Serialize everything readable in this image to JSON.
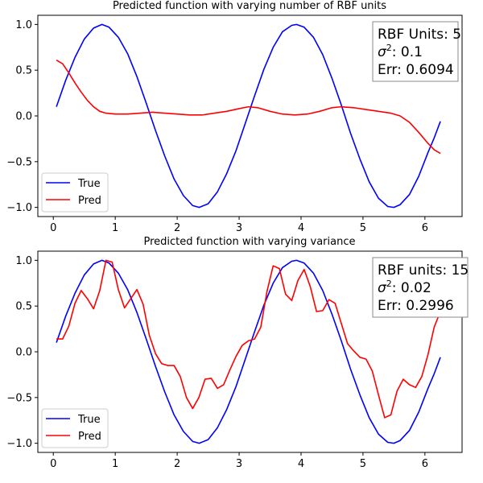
{
  "chart_data": [
    {
      "type": "line",
      "title": "Predicted function with varying number of RBF units",
      "xlabel": "",
      "ylabel": "",
      "xlim": [
        -0.25,
        6.6
      ],
      "ylim": [
        -1.1,
        1.1
      ],
      "x_ticks": [
        0,
        1,
        2,
        3,
        4,
        5,
        6
      ],
      "y_ticks": [
        -1.0,
        -0.5,
        0.0,
        0.5,
        1.0
      ],
      "grid": false,
      "legend": "lower-left",
      "info_box": {
        "lines": [
          "RBF Units: 5",
          "σ²: 0.1",
          "Err: 0.6094"
        ],
        "sigma_prefix": "σ",
        "sigma_exp": "2",
        "sigma_value": ": 0.1"
      },
      "series": [
        {
          "name": "True",
          "color": "#0000ff",
          "points": [
            [
              0.05,
              0.1
            ],
            [
              0.2,
              0.39
            ],
            [
              0.35,
              0.64
            ],
            [
              0.5,
              0.84
            ],
            [
              0.65,
              0.96
            ],
            [
              0.785,
              1.0
            ],
            [
              0.9,
              0.97
            ],
            [
              1.05,
              0.86
            ],
            [
              1.2,
              0.68
            ],
            [
              1.35,
              0.43
            ],
            [
              1.5,
              0.14
            ],
            [
              1.65,
              -0.16
            ],
            [
              1.8,
              -0.44
            ],
            [
              1.95,
              -0.69
            ],
            [
              2.1,
              -0.87
            ],
            [
              2.25,
              -0.98
            ],
            [
              2.356,
              -1.0
            ],
            [
              2.5,
              -0.96
            ],
            [
              2.65,
              -0.83
            ],
            [
              2.8,
              -0.63
            ],
            [
              2.95,
              -0.38
            ],
            [
              3.1,
              -0.08
            ],
            [
              3.25,
              0.22
            ],
            [
              3.4,
              0.51
            ],
            [
              3.55,
              0.75
            ],
            [
              3.7,
              0.92
            ],
            [
              3.85,
              0.99
            ],
            [
              3.927,
              1.0
            ],
            [
              4.05,
              0.97
            ],
            [
              4.2,
              0.86
            ],
            [
              4.35,
              0.67
            ],
            [
              4.5,
              0.41
            ],
            [
              4.65,
              0.12
            ],
            [
              4.8,
              -0.19
            ],
            [
              4.95,
              -0.47
            ],
            [
              5.1,
              -0.72
            ],
            [
              5.25,
              -0.9
            ],
            [
              5.4,
              -0.99
            ],
            [
              5.498,
              -1.0
            ],
            [
              5.6,
              -0.97
            ],
            [
              5.75,
              -0.86
            ],
            [
              5.9,
              -0.66
            ],
            [
              6.05,
              -0.4
            ],
            [
              6.15,
              -0.24
            ],
            [
              6.25,
              -0.06
            ]
          ]
        },
        {
          "name": "Pred",
          "color": "#ff0000",
          "points": [
            [
              0.05,
              0.61
            ],
            [
              0.15,
              0.57
            ],
            [
              0.25,
              0.47
            ],
            [
              0.35,
              0.36
            ],
            [
              0.45,
              0.26
            ],
            [
              0.55,
              0.17
            ],
            [
              0.65,
              0.1
            ],
            [
              0.75,
              0.05
            ],
            [
              0.85,
              0.03
            ],
            [
              1.0,
              0.02
            ],
            [
              1.2,
              0.02
            ],
            [
              1.4,
              0.03
            ],
            [
              1.6,
              0.04
            ],
            [
              1.8,
              0.03
            ],
            [
              2.0,
              0.02
            ],
            [
              2.2,
              0.01
            ],
            [
              2.4,
              0.01
            ],
            [
              2.6,
              0.03
            ],
            [
              2.8,
              0.05
            ],
            [
              3.0,
              0.08
            ],
            [
              3.15,
              0.1
            ],
            [
              3.3,
              0.09
            ],
            [
              3.5,
              0.05
            ],
            [
              3.7,
              0.02
            ],
            [
              3.9,
              0.01
            ],
            [
              4.1,
              0.02
            ],
            [
              4.3,
              0.05
            ],
            [
              4.5,
              0.09
            ],
            [
              4.65,
              0.1
            ],
            [
              4.85,
              0.09
            ],
            [
              5.05,
              0.07
            ],
            [
              5.25,
              0.05
            ],
            [
              5.45,
              0.03
            ],
            [
              5.6,
              0.0
            ],
            [
              5.75,
              -0.07
            ],
            [
              5.9,
              -0.18
            ],
            [
              6.05,
              -0.3
            ],
            [
              6.15,
              -0.37
            ],
            [
              6.25,
              -0.41
            ]
          ]
        }
      ]
    },
    {
      "type": "line",
      "title": "Predicted function with varying variance",
      "xlabel": "",
      "ylabel": "",
      "xlim": [
        -0.25,
        6.6
      ],
      "ylim": [
        -1.1,
        1.1
      ],
      "x_ticks": [
        0,
        1,
        2,
        3,
        4,
        5,
        6
      ],
      "y_ticks": [
        -1.0,
        -0.5,
        0.0,
        0.5,
        1.0
      ],
      "grid": false,
      "legend": "lower-left",
      "info_box": {
        "lines": [
          "RBF units: 15",
          "σ²: 0.02",
          "Err: 0.2996"
        ],
        "sigma_prefix": "σ",
        "sigma_exp": "2",
        "sigma_value": ": 0.02"
      },
      "series": [
        {
          "name": "True",
          "color": "#0000ff",
          "points": [
            [
              0.05,
              0.1
            ],
            [
              0.2,
              0.39
            ],
            [
              0.35,
              0.64
            ],
            [
              0.5,
              0.84
            ],
            [
              0.65,
              0.96
            ],
            [
              0.785,
              1.0
            ],
            [
              0.9,
              0.97
            ],
            [
              1.05,
              0.86
            ],
            [
              1.2,
              0.68
            ],
            [
              1.35,
              0.43
            ],
            [
              1.5,
              0.14
            ],
            [
              1.65,
              -0.16
            ],
            [
              1.8,
              -0.44
            ],
            [
              1.95,
              -0.69
            ],
            [
              2.1,
              -0.87
            ],
            [
              2.25,
              -0.98
            ],
            [
              2.356,
              -1.0
            ],
            [
              2.5,
              -0.96
            ],
            [
              2.65,
              -0.83
            ],
            [
              2.8,
              -0.63
            ],
            [
              2.95,
              -0.38
            ],
            [
              3.1,
              -0.08
            ],
            [
              3.25,
              0.22
            ],
            [
              3.4,
              0.51
            ],
            [
              3.55,
              0.75
            ],
            [
              3.7,
              0.92
            ],
            [
              3.85,
              0.99
            ],
            [
              3.927,
              1.0
            ],
            [
              4.05,
              0.97
            ],
            [
              4.2,
              0.86
            ],
            [
              4.35,
              0.67
            ],
            [
              4.5,
              0.41
            ],
            [
              4.65,
              0.12
            ],
            [
              4.8,
              -0.19
            ],
            [
              4.95,
              -0.47
            ],
            [
              5.1,
              -0.72
            ],
            [
              5.25,
              -0.9
            ],
            [
              5.4,
              -0.99
            ],
            [
              5.498,
              -1.0
            ],
            [
              5.6,
              -0.97
            ],
            [
              5.75,
              -0.86
            ],
            [
              5.9,
              -0.66
            ],
            [
              6.05,
              -0.4
            ],
            [
              6.15,
              -0.24
            ],
            [
              6.25,
              -0.06
            ]
          ]
        },
        {
          "name": "Pred",
          "color": "#ff0000",
          "points": [
            [
              0.05,
              0.14
            ],
            [
              0.15,
              0.14
            ],
            [
              0.25,
              0.28
            ],
            [
              0.35,
              0.53
            ],
            [
              0.45,
              0.67
            ],
            [
              0.55,
              0.58
            ],
            [
              0.65,
              0.47
            ],
            [
              0.75,
              0.67
            ],
            [
              0.85,
              1.0
            ],
            [
              0.95,
              0.98
            ],
            [
              1.05,
              0.68
            ],
            [
              1.15,
              0.48
            ],
            [
              1.25,
              0.58
            ],
            [
              1.35,
              0.68
            ],
            [
              1.45,
              0.52
            ],
            [
              1.55,
              0.18
            ],
            [
              1.65,
              -0.02
            ],
            [
              1.75,
              -0.13
            ],
            [
              1.85,
              -0.15
            ],
            [
              1.95,
              -0.15
            ],
            [
              2.05,
              -0.27
            ],
            [
              2.15,
              -0.5
            ],
            [
              2.25,
              -0.62
            ],
            [
              2.35,
              -0.5
            ],
            [
              2.45,
              -0.3
            ],
            [
              2.55,
              -0.29
            ],
            [
              2.65,
              -0.4
            ],
            [
              2.75,
              -0.36
            ],
            [
              2.85,
              -0.2
            ],
            [
              2.95,
              -0.05
            ],
            [
              3.05,
              0.07
            ],
            [
              3.15,
              0.12
            ],
            [
              3.25,
              0.14
            ],
            [
              3.35,
              0.27
            ],
            [
              3.45,
              0.66
            ],
            [
              3.55,
              0.94
            ],
            [
              3.65,
              0.91
            ],
            [
              3.75,
              0.63
            ],
            [
              3.85,
              0.56
            ],
            [
              3.95,
              0.78
            ],
            [
              4.05,
              0.9
            ],
            [
              4.15,
              0.71
            ],
            [
              4.25,
              0.44
            ],
            [
              4.35,
              0.45
            ],
            [
              4.45,
              0.57
            ],
            [
              4.55,
              0.53
            ],
            [
              4.65,
              0.31
            ],
            [
              4.75,
              0.09
            ],
            [
              4.85,
              0.01
            ],
            [
              4.95,
              -0.06
            ],
            [
              5.05,
              -0.08
            ],
            [
              5.15,
              -0.21
            ],
            [
              5.25,
              -0.47
            ],
            [
              5.35,
              -0.72
            ],
            [
              5.45,
              -0.69
            ],
            [
              5.55,
              -0.43
            ],
            [
              5.65,
              -0.3
            ],
            [
              5.75,
              -0.36
            ],
            [
              5.85,
              -0.39
            ],
            [
              5.95,
              -0.27
            ],
            [
              6.05,
              -0.03
            ],
            [
              6.15,
              0.27
            ],
            [
              6.25,
              0.44
            ]
          ]
        }
      ]
    }
  ]
}
